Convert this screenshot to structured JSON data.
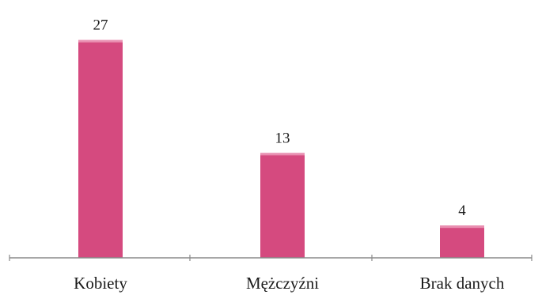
{
  "chart_data": {
    "type": "bar",
    "title": "",
    "xlabel": "",
    "ylabel": "",
    "categories": [
      "Kobiety",
      "Mężczyźni",
      "Brak danych"
    ],
    "values": [
      27,
      13,
      4
    ],
    "data_labels": [
      "27",
      "13",
      "4"
    ],
    "ylim": [
      0,
      30
    ],
    "grid": false,
    "legend": "none",
    "colors": {
      "bar": "#d54a7f",
      "bar_top": "#e98fb1",
      "axis": "#8a8a8a",
      "text": "#1a1a1a"
    }
  }
}
